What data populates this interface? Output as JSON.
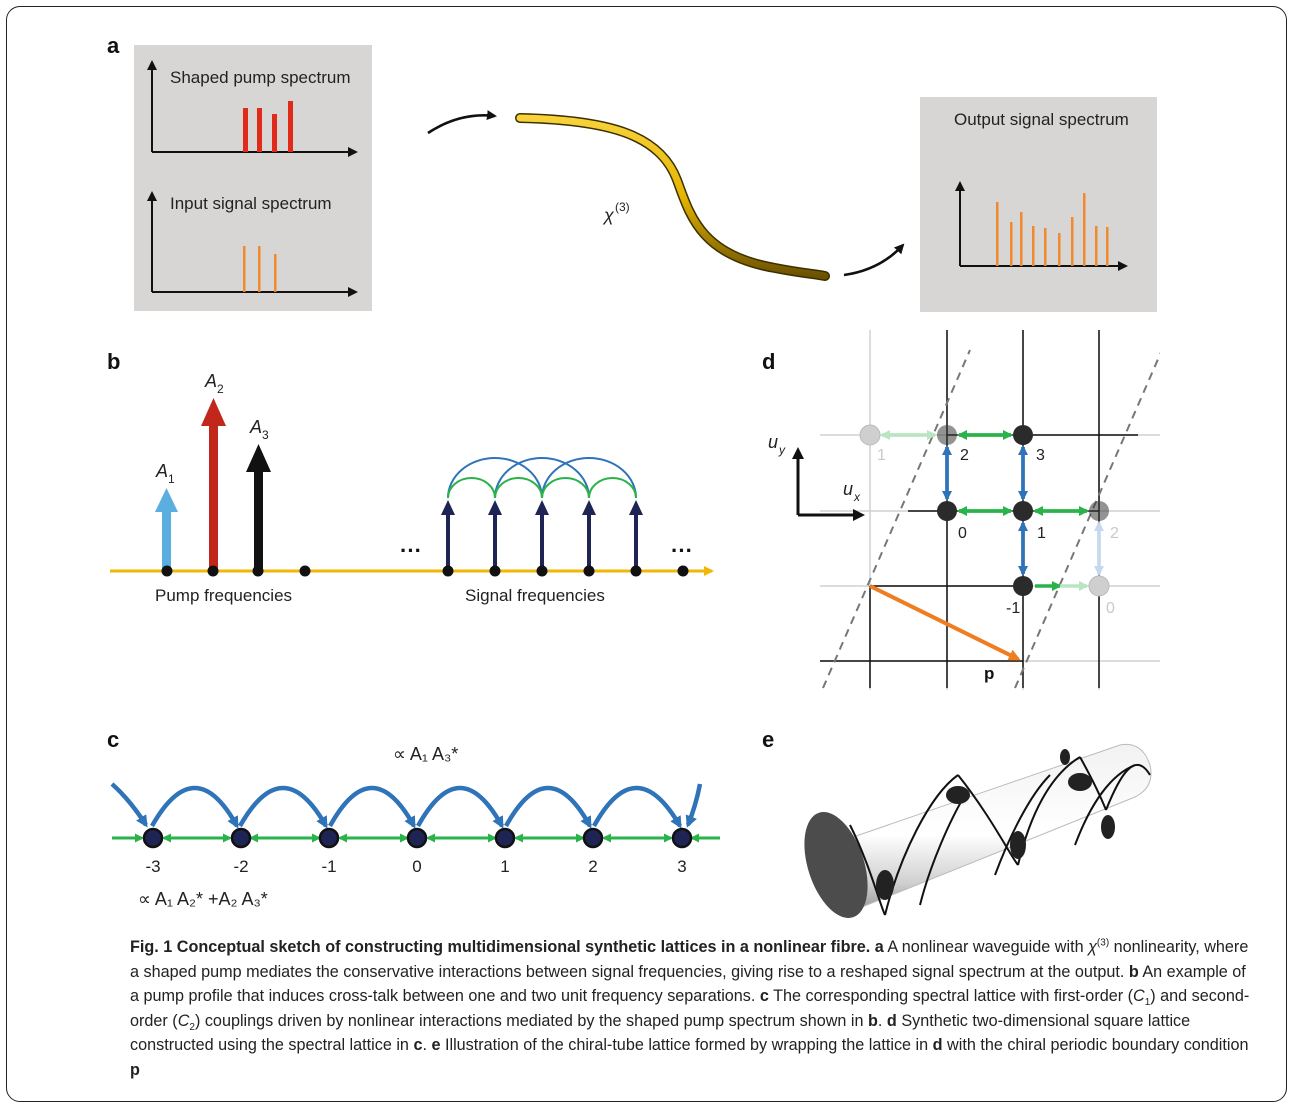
{
  "panels": {
    "a": {
      "letter": "a",
      "pump_label": "Shaped pump spectrum",
      "input_label": "Input signal spectrum",
      "output_label": "Output signal spectrum",
      "chi": "χ",
      "chi_sup": "(3)",
      "pump_color": "#e02a1a",
      "signal_color": "#ef8a2e",
      "fibre_color": "#e5b400",
      "box_color": "#d8d6d5"
    },
    "b": {
      "letter": "b",
      "amplitudes": [
        {
          "label": "A",
          "sub": "1",
          "color": "#5aafe0"
        },
        {
          "label": "A",
          "sub": "2",
          "color": "#c1271b"
        },
        {
          "label": "A",
          "sub": "3",
          "color": "#111111"
        }
      ],
      "pump_text": "Pump frequencies",
      "signal_text": "Signal frequencies",
      "ellipsis": "···",
      "axis_color": "#f2b705",
      "signal_arrow_color": "#1e2454",
      "arc_blue": "#2f73b8",
      "arc_green": "#2ab34a"
    },
    "c": {
      "letter": "c",
      "top_label": "∝ A₁ A₃*",
      "bottom_label": "∝ A₁ A₂* +A₂ A₃*",
      "sites": [
        "-3",
        "-2",
        "-1",
        "0",
        "1",
        "2",
        "3"
      ]
    },
    "d": {
      "letter": "d",
      "ux": "u",
      "ux_sub": "x",
      "uy": "u",
      "uy_sub": "y",
      "p_label": "p",
      "site_labels": {
        "s0": "0",
        "s1": "1",
        "s2": "2",
        "s3": "3",
        "sm1": "-1",
        "ghost1": "1",
        "ghost2": "2",
        "ghost0": "0"
      },
      "bond_orange": "#ef7d22"
    },
    "e": {
      "letter": "e"
    }
  },
  "caption": {
    "title": "Fig. 1 Conceptual sketch of constructing multidimensional synthetic lattices in a nonlinear fibre.",
    "a_letter": "a",
    "a_text_1": "A nonlinear waveguide with",
    "a_chi": "χ",
    "a_sup": "(3)",
    "a_text_2": "nonlinearity, where a shaped pump mediates the conservative interactions between signal frequencies, giving rise to a reshaped signal spectrum at the output.",
    "b_letter": "b",
    "b_text": "An example of a pump profile that induces cross-talk between one and two unit frequency separations.",
    "c_letter": "c",
    "c_text_1": "The corresponding spectral lattice with first-order (",
    "c_C1": "C",
    "c_C1_sub": "1",
    "c_text_2": ") and second-order (",
    "c_C2": "C",
    "c_C2_sub": "2",
    "c_text_3": ") couplings driven by nonlinear interactions mediated by the shaped pump spectrum shown in",
    "c_ref": "b",
    "c_end": ".",
    "d_letter": "d",
    "d_text": "Synthetic two-dimensional square lattice constructed using the spectral lattice in",
    "d_ref": "c",
    "d_end": ".",
    "e_letter": "e",
    "e_text": "Illustration of the chiral-tube lattice formed by wrapping the lattice in",
    "e_ref": "d",
    "e_text_2": "with the chiral periodic boundary condition",
    "e_p": "p"
  }
}
